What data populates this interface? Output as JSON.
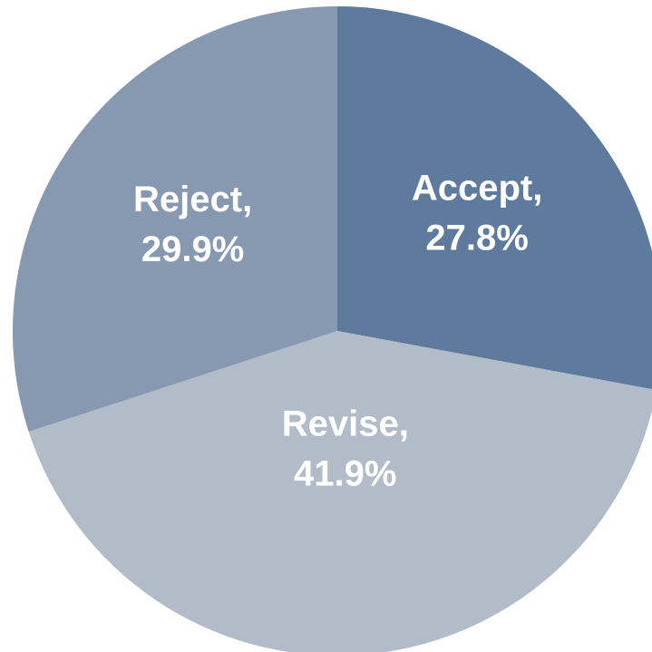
{
  "chart_data": {
    "type": "pie",
    "categories": [
      "Accept,",
      "Revise,",
      "Reject,"
    ],
    "values": [
      27.8,
      41.9,
      29.9
    ],
    "value_labels": [
      "27.8%",
      "41.9%",
      "29.9%"
    ],
    "colors": [
      "#5e7b9e",
      "#b2bcc9",
      "#8799b1"
    ]
  }
}
